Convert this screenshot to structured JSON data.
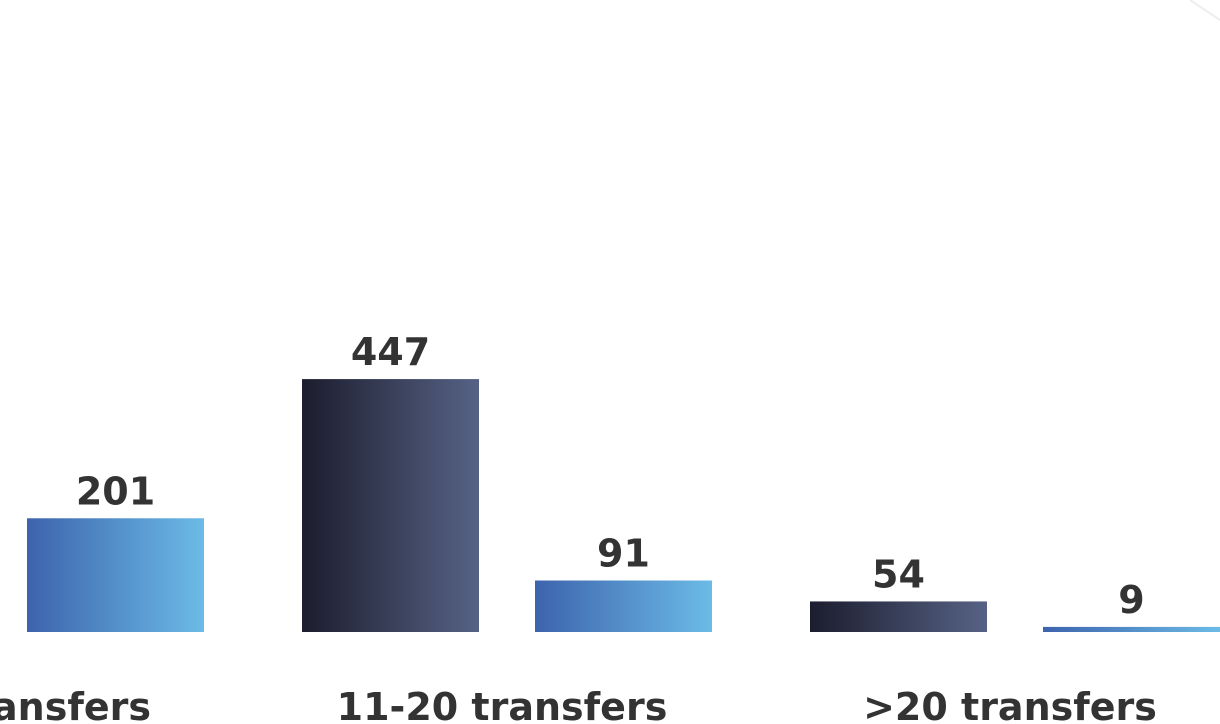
{
  "chart_data": {
    "type": "bar",
    "categories": [
      "ansfers",
      "11-20 transfers",
      ">20 transfers"
    ],
    "series": [
      {
        "color": "#1c1d2e",
        "values": [
          null,
          447,
          54
        ]
      },
      {
        "color": "#3d63ad",
        "values": [
          201,
          91,
          9
        ]
      }
    ],
    "ylim": [
      0,
      1117
    ]
  }
}
